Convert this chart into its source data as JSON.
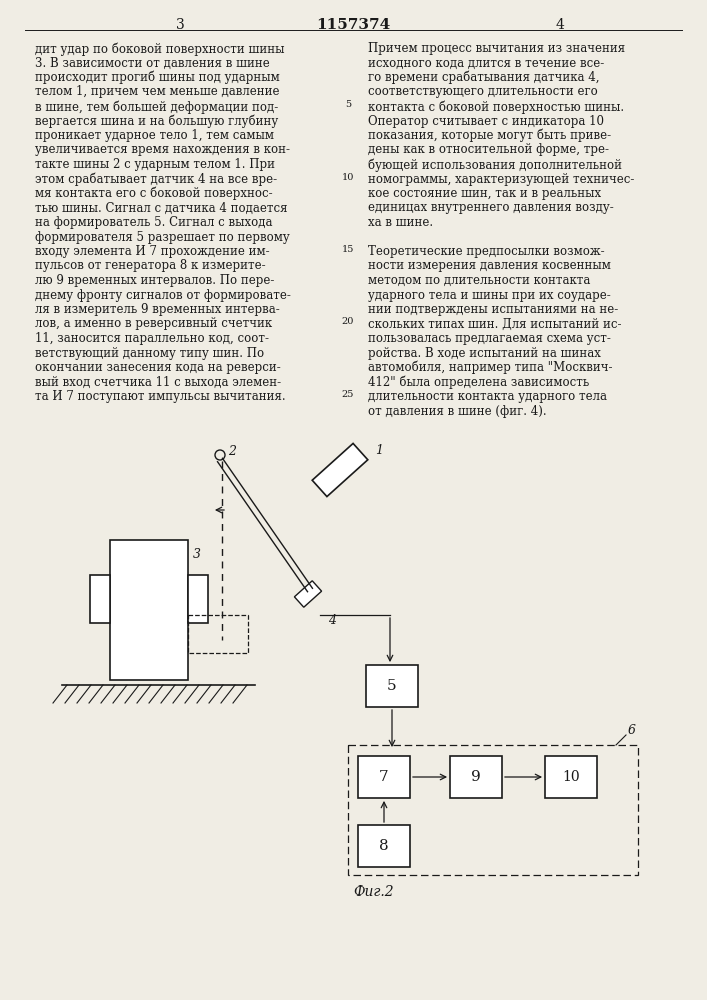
{
  "page_number_left": "3",
  "page_header_center": "1157374",
  "page_number_right": "4",
  "bg_color": "#f0ede4",
  "text_color": "#1a1a1a",
  "left_column_text": [
    "дит удар по боковой поверхности шины",
    "3. В зависимости от давления в шине",
    "происходит прогиб шины под ударным",
    "телом 1, причем чем меньше давление",
    "в шине, тем большей деформации под-",
    "вергается шина и на большую глубину",
    "проникает ударное тело 1, тем самым",
    "увеличивается время нахождения в кон-",
    "такте шины 2 с ударным телом 1. При",
    "этом срабатывает датчик 4 на все вре-",
    "мя контакта его с боковой поверхнос-",
    "тью шины. Сигнал с датчика 4 подается",
    "на формирователь 5. Сигнал с выхода",
    "формирователя 5 разрешает по первому",
    "входу элемента И 7 прохождение им-",
    "пульсов от генератора 8 к измерите-",
    "лю 9 временных интервалов. По пере-",
    "днему фронту сигналов от формировате-",
    "ля в измеритель 9 временных интерва-",
    "лов, а именно в реверсивный счетчик",
    "11, заносится параллельно код, соот-",
    "ветствующий данному типу шин. По",
    "окончании занесения кода на реверси-",
    "вый вход счетчика 11 с выхода элемен-",
    "та И 7 поступают импульсы вычитания."
  ],
  "right_column_text": [
    "Причем процесс вычитания из значения",
    "исходного кода длится в течение все-",
    "го времени срабатывания датчика 4,",
    "соответствующего длительности его",
    "контакта с боковой поверхностью шины.",
    "Оператор считывает с индикатора 10",
    "показания, которые могут быть приве-",
    "дены как в относительной форме, тре-",
    "бующей использования дополнительной",
    "номограммы, характеризующей техничес-",
    "кое состояние шин, так и в реальных",
    "единицах внутреннего давления возду-",
    "ха в шине.",
    "",
    "Теоретические предпосылки возмож-",
    "ности измерения давления косвенным",
    "методом по длительности контакта",
    "ударного тела и шины при их соударе-",
    "нии подтверждены испытаниями на не-",
    "скольких типах шин. Для испытаний ис-",
    "пользовалась предлагаемая схема уст-",
    "ройства. В ходе испытаний на шинах",
    "автомобиля, например типа \"Москвич-",
    "412\" была определена зависимость",
    "длительности контакта ударного тела",
    "от давления в шине (фиг. 4)."
  ],
  "line_numbers": [
    5,
    10,
    15,
    20,
    25
  ],
  "fig_caption": "Фиг.2"
}
